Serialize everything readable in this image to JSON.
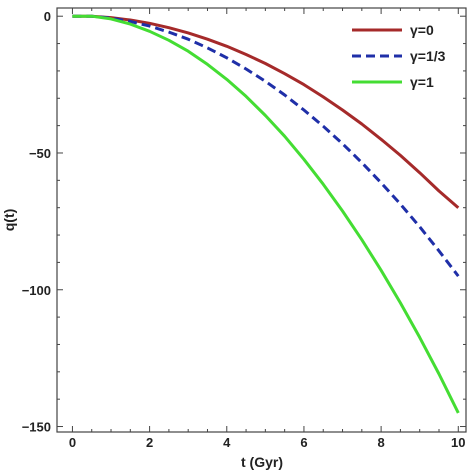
{
  "chart_data": {
    "type": "line",
    "xlabel": "t (Gyr)",
    "ylabel": "q(t)",
    "xlim": [
      -0.4,
      10.2
    ],
    "ylim": [
      -152,
      3
    ],
    "x_ticks_major": [
      0,
      2,
      4,
      6,
      8,
      10
    ],
    "y_ticks_major": [
      0,
      -50,
      -100,
      -150
    ],
    "grid": false,
    "legend_position": "top-right",
    "series": [
      {
        "name": "γ=0",
        "color": "#a52a2a",
        "style": "solid",
        "x": [
          0,
          0.5,
          1,
          1.5,
          2,
          2.5,
          3,
          3.5,
          4,
          4.5,
          5,
          5.5,
          6,
          6.5,
          7,
          7.5,
          8,
          8.5,
          9,
          9.5,
          10
        ],
        "y": [
          0,
          0,
          -0.5,
          -1.4,
          -2.6,
          -4.2,
          -6.1,
          -8.4,
          -11,
          -14,
          -17.3,
          -21,
          -25,
          -29.5,
          -34.3,
          -39.4,
          -45,
          -50.9,
          -57.2,
          -63.9,
          -70
        ]
      },
      {
        "name": "γ=1/3",
        "color": "#1f2fa8",
        "style": "dashed",
        "x": [
          0,
          0.5,
          1,
          1.5,
          2,
          2.5,
          3,
          3.5,
          4,
          4.5,
          5,
          5.5,
          6,
          6.5,
          7,
          7.5,
          8,
          8.5,
          9,
          9.5,
          10
        ],
        "y": [
          0,
          0,
          -0.7,
          -1.9,
          -3.6,
          -5.8,
          -8.4,
          -11.6,
          -15.2,
          -19.3,
          -23.8,
          -28.8,
          -34.3,
          -40.2,
          -46.6,
          -53.5,
          -60.9,
          -68.7,
          -77,
          -85.8,
          -95
        ]
      },
      {
        "name": "γ=1",
        "color": "#44dd33",
        "style": "solid",
        "x": [
          0,
          0.5,
          1,
          1.5,
          2,
          2.5,
          3,
          3.5,
          4,
          4.5,
          5,
          5.5,
          6,
          6.5,
          7,
          7.5,
          8,
          8.5,
          9,
          9.5,
          10
        ],
        "y": [
          0,
          0,
          -1,
          -2.9,
          -5.5,
          -8.8,
          -12.8,
          -17.6,
          -23.1,
          -29.3,
          -36.3,
          -43.9,
          -52.3,
          -61.4,
          -71.2,
          -81.7,
          -92.9,
          -104.8,
          -117.4,
          -130.8,
          -145
        ]
      }
    ]
  }
}
